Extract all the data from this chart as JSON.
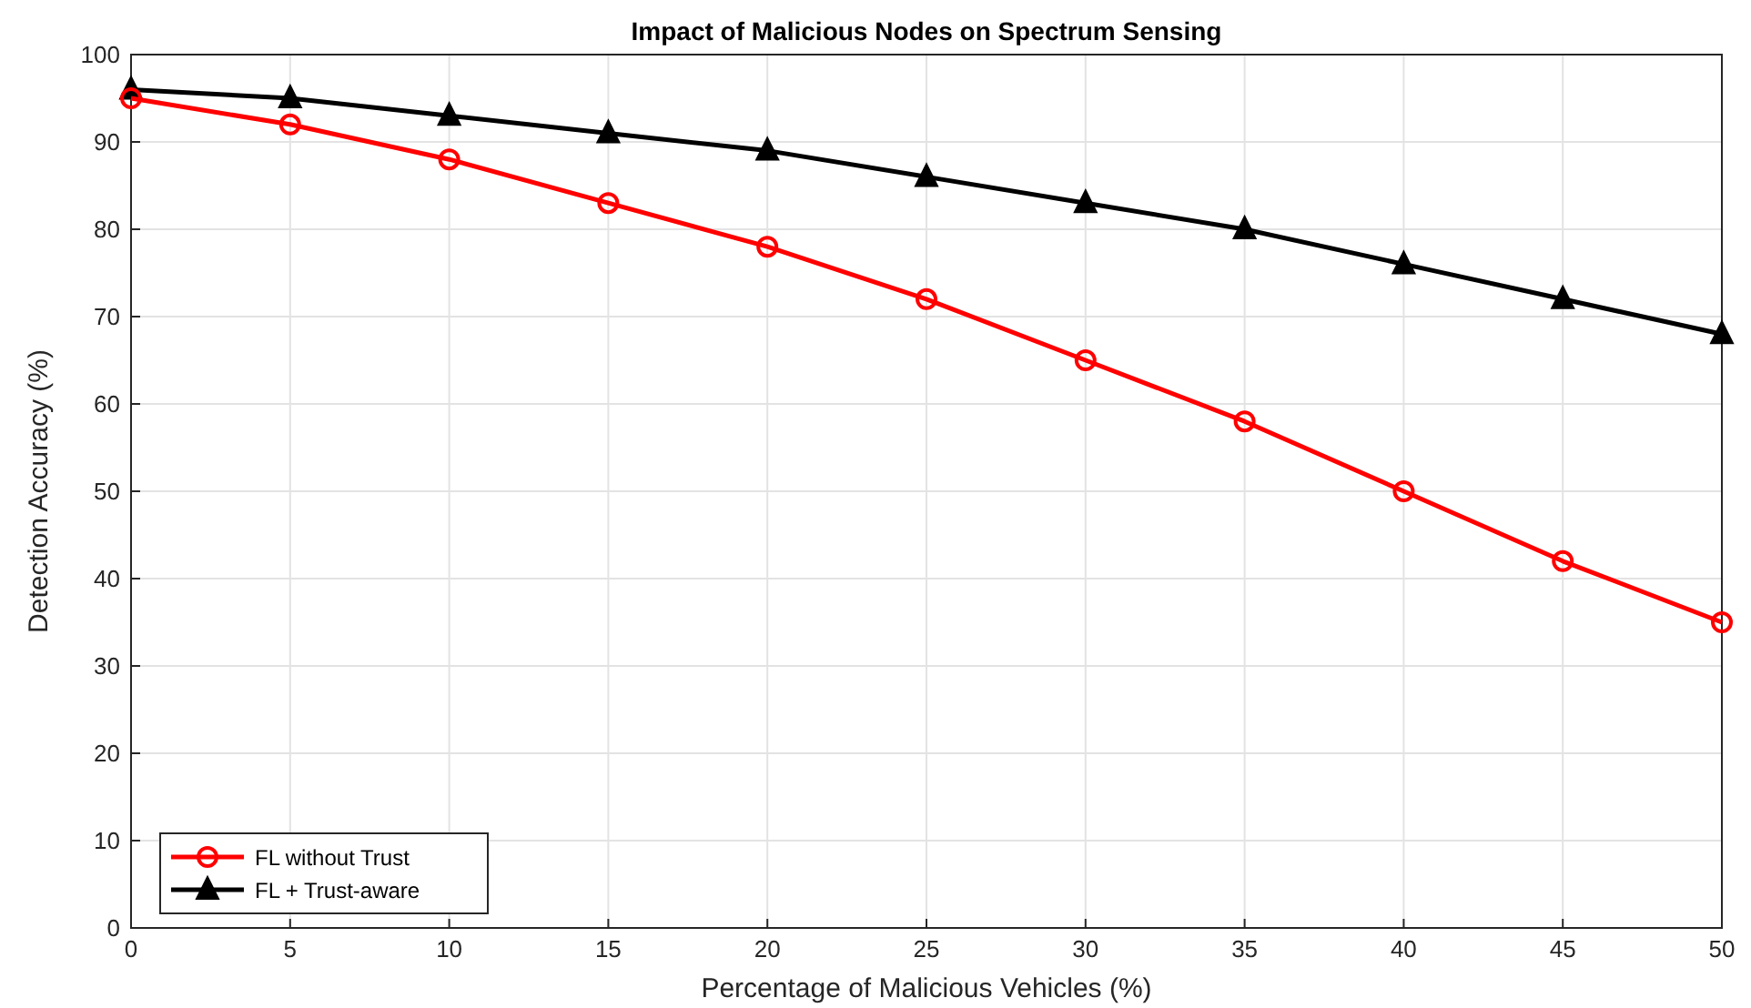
{
  "chart_data": {
    "type": "line",
    "title": "Impact of Malicious Nodes on Spectrum Sensing",
    "xlabel": "Percentage of Malicious Vehicles (%)",
    "ylabel": "Detection Accuracy (%)",
    "x": [
      0,
      5,
      10,
      15,
      20,
      25,
      30,
      35,
      40,
      45,
      50
    ],
    "series": [
      {
        "name": "FL without Trust",
        "color": "#ff0000",
        "marker": "circle",
        "values": [
          95,
          92,
          88,
          83,
          78,
          72,
          65,
          58,
          50,
          42,
          35
        ]
      },
      {
        "name": "FL + Trust-aware",
        "color": "#000000",
        "marker": "triangle",
        "values": [
          96,
          95,
          93,
          91,
          89,
          86,
          83,
          80,
          76,
          72,
          68
        ]
      }
    ],
    "xlim": [
      0,
      50
    ],
    "xticks": [
      0,
      5,
      10,
      15,
      20,
      25,
      30,
      35,
      40,
      45,
      50
    ],
    "ylim": [
      0,
      100
    ],
    "yticks": [
      0,
      10,
      20,
      30,
      40,
      50,
      60,
      70,
      80,
      90,
      100
    ],
    "grid": true,
    "legend": "bottom left",
    "line_style": "solid"
  }
}
